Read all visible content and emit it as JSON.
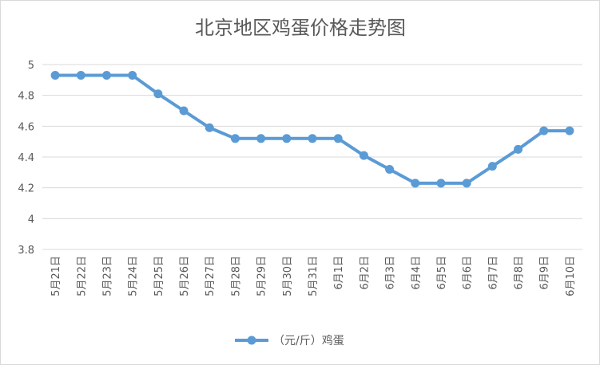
{
  "chart_data": {
    "type": "line",
    "title": "北京地区鸡蛋价格走势图",
    "xlabel": "",
    "ylabel": "",
    "ylim": [
      3.8,
      5
    ],
    "yticks": [
      "3.8",
      "4",
      "4.2",
      "4.4",
      "4.6",
      "4.8",
      "5"
    ],
    "grid": true,
    "legend_position": "bottom",
    "categories": [
      "5月21日",
      "5月22日",
      "5月23日",
      "5月24日",
      "5月25日",
      "5月26日",
      "5月27日",
      "5月28日",
      "5月29日",
      "5月30日",
      "5月31日",
      "6月1日",
      "6月2日",
      "6月3日",
      "6月4日",
      "6月5日",
      "6月6日",
      "6月7日",
      "6月8日",
      "6月9日",
      "6月10日"
    ],
    "series": [
      {
        "name": "（元/斤）鸡蛋",
        "color": "#5b9bd5",
        "values": [
          4.93,
          4.93,
          4.93,
          4.93,
          4.81,
          4.7,
          4.59,
          4.52,
          4.52,
          4.52,
          4.52,
          4.52,
          4.41,
          4.32,
          4.23,
          4.23,
          4.23,
          4.34,
          4.45,
          4.57,
          4.57
        ]
      }
    ]
  }
}
